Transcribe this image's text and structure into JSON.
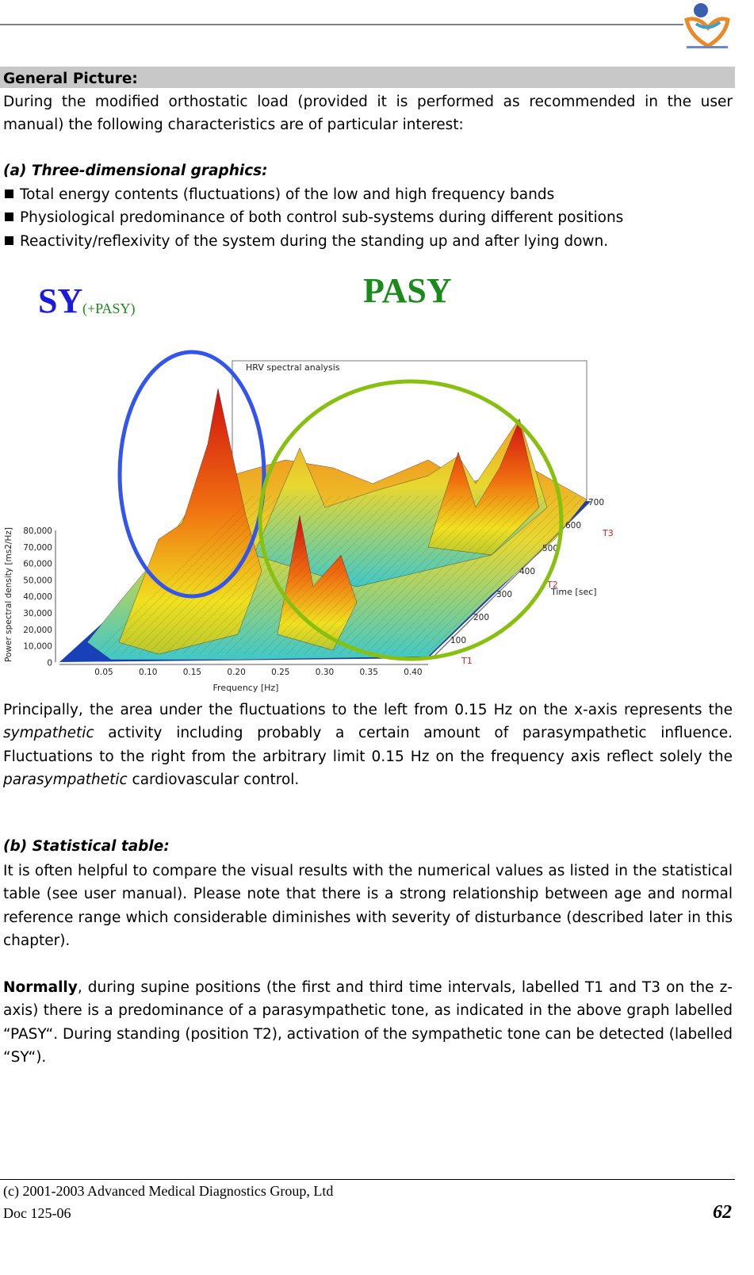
{
  "section": {
    "title": "General Picture:"
  },
  "intro": "During the modified orthostatic load (provided it is performed as recommended in the user manual) the following characteristics are of particular interest:",
  "part_a": {
    "heading": "(a) Three-dimensional graphics:",
    "bullets": [
      "Total energy contents (fluctuations) of the low and high frequency bands",
      "Physiological predominance of both control sub-systems during different positions",
      "Reactivity/reflexivity of the system during the standing up and after lying down."
    ]
  },
  "figure": {
    "label_sy": "SY",
    "label_sy_sub": "(+PASY)",
    "label_pasy": "PASY",
    "title": "HRV spectral analysis",
    "y_axis_label": "Power spectral density [ms2/Hz]",
    "y_ticks": [
      "80,000",
      "70,000",
      "60,000",
      "50,000",
      "40,000",
      "30,000",
      "20,000",
      "10,000",
      "0"
    ],
    "x_axis_label": "Frequency [Hz]",
    "x_ticks": [
      "0.05",
      "0.10",
      "0.15",
      "0.20",
      "0.25",
      "0.30",
      "0.35",
      "0.40"
    ],
    "z_axis_label": "Time [sec]",
    "z_ticks": [
      "100",
      "200",
      "300",
      "400",
      "500",
      "600",
      "700"
    ],
    "markers": [
      "T1",
      "T2",
      "T3"
    ]
  },
  "paragraph_1": {
    "parts": [
      "Principally, the area under the fluctuations to the left from 0.15 Hz on the x-axis represents the ",
      "sympathetic",
      " activity including probably a certain amount of parasympathetic influence. Fluctuations to the right from the arbitrary limit 0.15 Hz on the frequency axis reflect solely the ",
      "parasympathetic",
      " cardiovascular control."
    ]
  },
  "part_b": {
    "heading": "(b) Statistical table:",
    "text": "It is often helpful to compare the visual results with the numerical values as listed in the statistical table (see user manual). Please note that there is a strong relationship between age and normal reference range which considerable diminishes with severity of disturbance (described later in this chapter)."
  },
  "paragraph_3": {
    "lead": "Normally",
    "text": ", during supine positions (the first and third time intervals, labelled T1 and T3 on the z-axis) there is a predominance of a parasympathetic tone, as indicated in the above graph labelled “PASY“. During standing (position T2), activation of the sympathetic tone can be detected (labelled “SY“)."
  },
  "footer": {
    "copyright": "(c) 2001-2003 Advanced Medical Diagnostics Group, Ltd",
    "doc": "Doc 125-06",
    "page": "62"
  }
}
